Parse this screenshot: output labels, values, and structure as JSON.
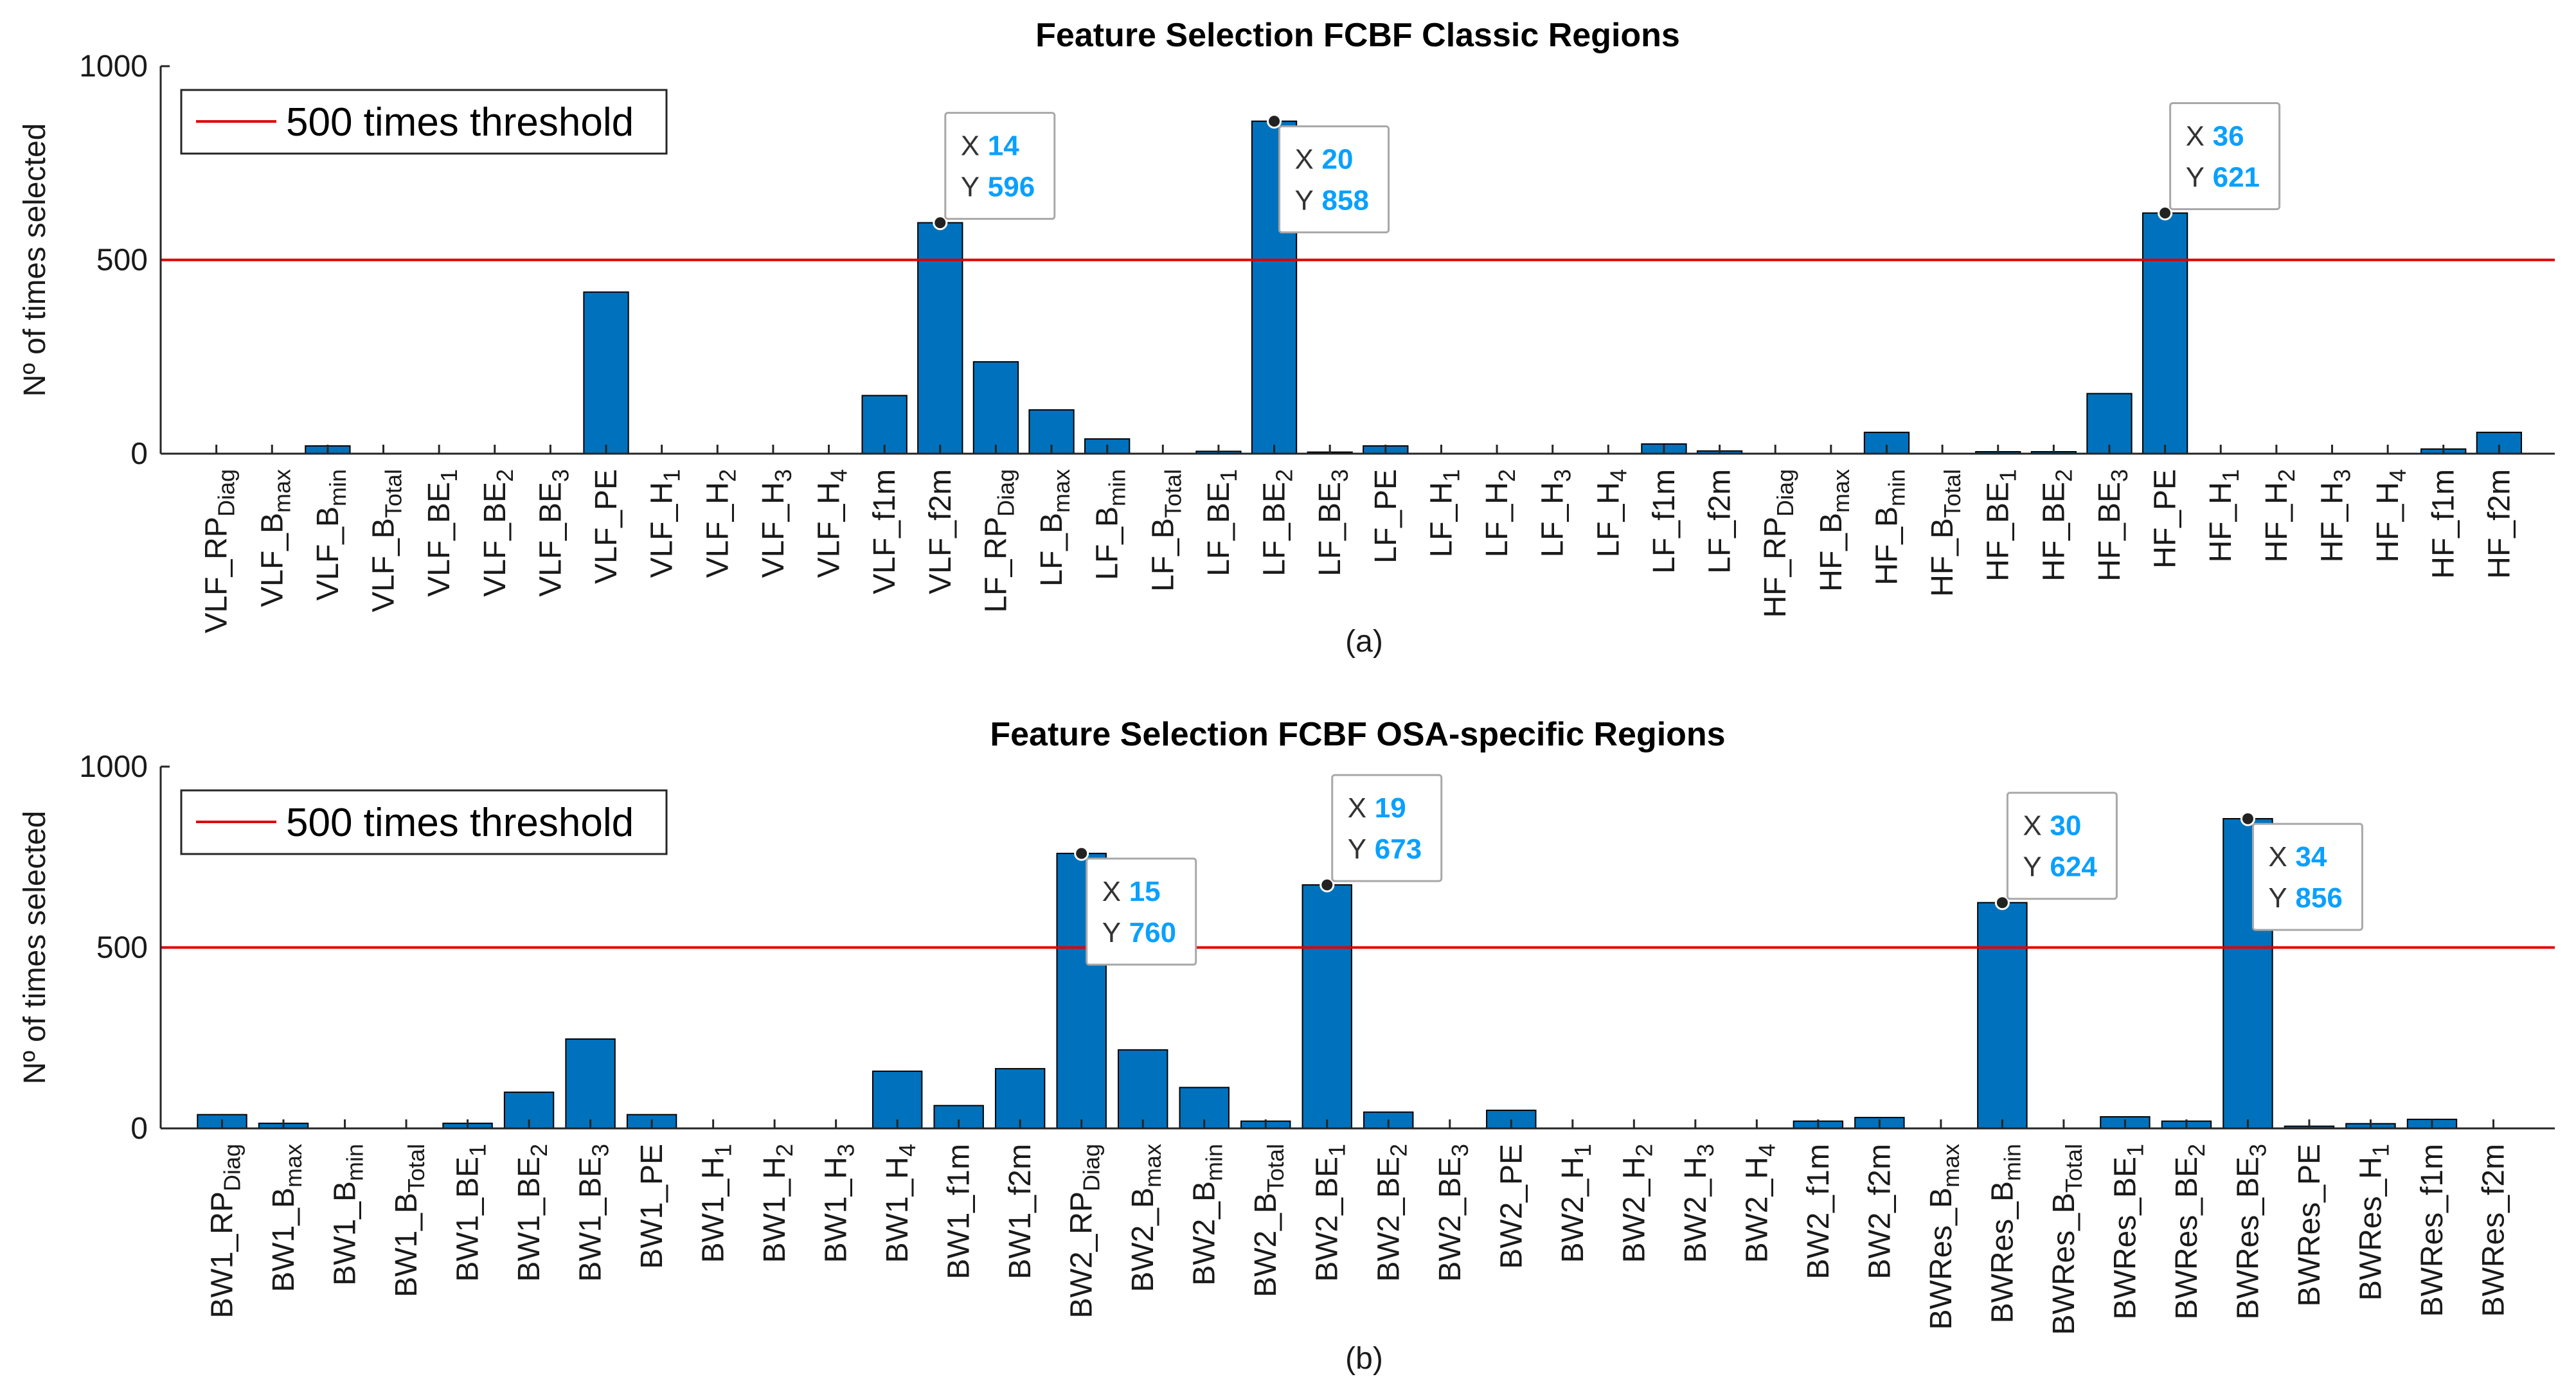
{
  "colors": {
    "bar": "#0072BD",
    "threshold": "#E00000",
    "axis": "#262626",
    "tip_value": "#0AA0FF"
  },
  "chart_data": [
    {
      "type": "bar",
      "title": "Feature Selection FCBF Classic Regions",
      "ylabel": "Nº of times selected",
      "caption": "(a)",
      "ylim": [
        0,
        1000
      ],
      "yticks": [
        0,
        500,
        1000
      ],
      "threshold": {
        "value": 500,
        "label": "500 times threshold"
      },
      "categories": [
        {
          "base": "VLF_RP",
          "sub": "Diag"
        },
        {
          "base": "VLF_B",
          "sub": "max"
        },
        {
          "base": "VLF_B",
          "sub": "min"
        },
        {
          "base": "VLF_B",
          "sub": "Total"
        },
        {
          "base": "VLF_BE",
          "sub": "1"
        },
        {
          "base": "VLF_BE",
          "sub": "2"
        },
        {
          "base": "VLF_BE",
          "sub": "3"
        },
        {
          "base": "VLF_PE",
          "sub": ""
        },
        {
          "base": "VLF_H",
          "sub": "1"
        },
        {
          "base": "VLF_H",
          "sub": "2"
        },
        {
          "base": "VLF_H",
          "sub": "3"
        },
        {
          "base": "VLF_H",
          "sub": "4"
        },
        {
          "base": "VLF_f1m",
          "sub": ""
        },
        {
          "base": "VLF_f2m",
          "sub": ""
        },
        {
          "base": "LF_RP",
          "sub": "Diag"
        },
        {
          "base": "LF_B",
          "sub": "max"
        },
        {
          "base": "LF_B",
          "sub": "min"
        },
        {
          "base": "LF_B",
          "sub": "Total"
        },
        {
          "base": "LF_BE",
          "sub": "1"
        },
        {
          "base": "LF_BE",
          "sub": "2"
        },
        {
          "base": "LF_BE",
          "sub": "3"
        },
        {
          "base": "LF_PE",
          "sub": ""
        },
        {
          "base": "LF_H",
          "sub": "1"
        },
        {
          "base": "LF_H",
          "sub": "2"
        },
        {
          "base": "LF_H",
          "sub": "3"
        },
        {
          "base": "LF_H",
          "sub": "4"
        },
        {
          "base": "LF_f1m",
          "sub": ""
        },
        {
          "base": "LF_f2m",
          "sub": ""
        },
        {
          "base": "HF_RP",
          "sub": "Diag"
        },
        {
          "base": "HF_B",
          "sub": "max"
        },
        {
          "base": "HF_B",
          "sub": "min"
        },
        {
          "base": "HF_B",
          "sub": "Total"
        },
        {
          "base": "HF_BE",
          "sub": "1"
        },
        {
          "base": "HF_BE",
          "sub": "2"
        },
        {
          "base": "HF_BE",
          "sub": "3"
        },
        {
          "base": "HF_PE",
          "sub": ""
        },
        {
          "base": "HF_H",
          "sub": "1"
        },
        {
          "base": "HF_H",
          "sub": "2"
        },
        {
          "base": "HF_H",
          "sub": "3"
        },
        {
          "base": "HF_H",
          "sub": "4"
        },
        {
          "base": "HF_f1m",
          "sub": ""
        },
        {
          "base": "HF_f2m",
          "sub": ""
        }
      ],
      "values": [
        0,
        0,
        20,
        0,
        0,
        0,
        0,
        417,
        0,
        0,
        0,
        0,
        150,
        596,
        237,
        113,
        38,
        0,
        6,
        858,
        4,
        20,
        0,
        0,
        0,
        0,
        25,
        7,
        0,
        0,
        55,
        0,
        5,
        5,
        155,
        621,
        0,
        0,
        0,
        0,
        12,
        55
      ],
      "datatips": [
        {
          "x": 14,
          "y": 596,
          "x_label": "X",
          "y_label": "Y",
          "x_text": "14",
          "y_text": "596"
        },
        {
          "x": 20,
          "y": 858,
          "x_label": "X",
          "y_label": "Y",
          "x_text": "20",
          "y_text": "858"
        },
        {
          "x": 36,
          "y": 621,
          "x_label": "X",
          "y_label": "Y",
          "x_text": "36",
          "y_text": "621"
        }
      ]
    },
    {
      "type": "bar",
      "title": "Feature Selection FCBF OSA-specific Regions",
      "ylabel": "Nº of times selected",
      "caption": "(b)",
      "ylim": [
        0,
        1000
      ],
      "yticks": [
        0,
        500,
        1000
      ],
      "threshold": {
        "value": 500,
        "label": "500 times threshold"
      },
      "categories": [
        {
          "base": "BW1_RP",
          "sub": "Diag"
        },
        {
          "base": "BW1_B",
          "sub": "max"
        },
        {
          "base": "BW1_B",
          "sub": "min"
        },
        {
          "base": "BW1_B",
          "sub": "Total"
        },
        {
          "base": "BW1_BE",
          "sub": "1"
        },
        {
          "base": "BW1_BE",
          "sub": "2"
        },
        {
          "base": "BW1_BE",
          "sub": "3"
        },
        {
          "base": "BW1_PE",
          "sub": ""
        },
        {
          "base": "BW1_H",
          "sub": "1"
        },
        {
          "base": "BW1_H",
          "sub": "2"
        },
        {
          "base": "BW1_H",
          "sub": "3"
        },
        {
          "base": "BW1_H",
          "sub": "4"
        },
        {
          "base": "BW1_f1m",
          "sub": ""
        },
        {
          "base": "BW1_f2m",
          "sub": ""
        },
        {
          "base": "BW2_RP",
          "sub": "Diag"
        },
        {
          "base": "BW2_B",
          "sub": "max"
        },
        {
          "base": "BW2_B",
          "sub": "min"
        },
        {
          "base": "BW2_B",
          "sub": "Total"
        },
        {
          "base": "BW2_BE",
          "sub": "1"
        },
        {
          "base": "BW2_BE",
          "sub": "2"
        },
        {
          "base": "BW2_BE",
          "sub": "3"
        },
        {
          "base": "BW2_PE",
          "sub": ""
        },
        {
          "base": "BW2_H",
          "sub": "1"
        },
        {
          "base": "BW2_H",
          "sub": "2"
        },
        {
          "base": "BW2_H",
          "sub": "3"
        },
        {
          "base": "BW2_H",
          "sub": "4"
        },
        {
          "base": "BW2_f1m",
          "sub": ""
        },
        {
          "base": "BW2_f2m",
          "sub": ""
        },
        {
          "base": "BWRes_B",
          "sub": "max"
        },
        {
          "base": "BWRes_B",
          "sub": "min"
        },
        {
          "base": "BWRes_B",
          "sub": "Total"
        },
        {
          "base": "BWRes_BE",
          "sub": "1"
        },
        {
          "base": "BWRes_BE",
          "sub": "2"
        },
        {
          "base": "BWRes_BE",
          "sub": "3"
        },
        {
          "base": "BWRes_PE",
          "sub": ""
        },
        {
          "base": "BWRes_H",
          "sub": "1"
        },
        {
          "base": "BWRes_f1m",
          "sub": ""
        },
        {
          "base": "BWRes_f2m",
          "sub": ""
        }
      ],
      "values": [
        38,
        14,
        0,
        0,
        14,
        100,
        247,
        38,
        0,
        0,
        0,
        158,
        63,
        165,
        760,
        217,
        113,
        20,
        673,
        45,
        0,
        50,
        0,
        0,
        0,
        0,
        20,
        30,
        0,
        624,
        0,
        32,
        20,
        856,
        6,
        13,
        25,
        0
      ],
      "datatips": [
        {
          "x": 15,
          "y": 760,
          "x_label": "X",
          "y_label": "Y",
          "x_text": "15",
          "y_text": "760"
        },
        {
          "x": 19,
          "y": 673,
          "x_label": "X",
          "y_label": "Y",
          "x_text": "19",
          "y_text": "673"
        },
        {
          "x": 30,
          "y": 624,
          "x_label": "X",
          "y_label": "Y",
          "x_text": "30",
          "y_text": "624"
        },
        {
          "x": 34,
          "y": 856,
          "x_label": "X",
          "y_label": "Y",
          "x_text": "34",
          "y_text": "856"
        }
      ]
    }
  ]
}
